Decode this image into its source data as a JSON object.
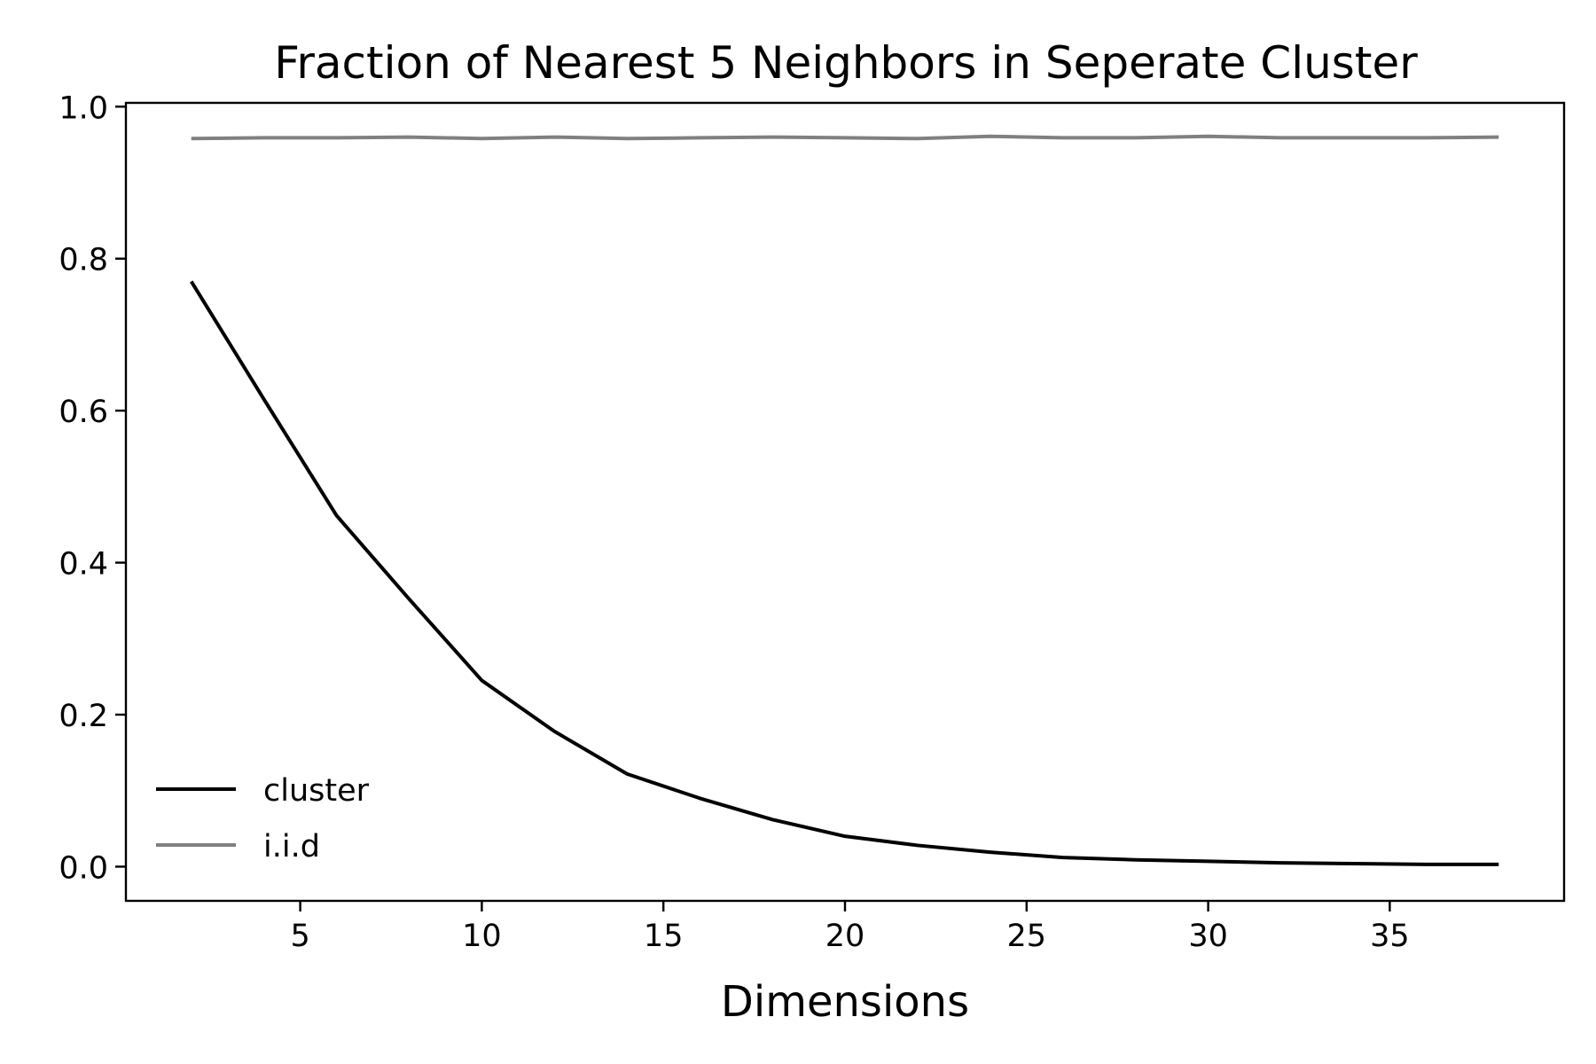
{
  "chart_data": {
    "type": "line",
    "title": "Fraction of Nearest 5 Neighbors in Seperate Cluster",
    "xlabel": "Dimensions",
    "ylabel": "",
    "xlim": [
      0.2,
      39.8
    ],
    "ylim": [
      -0.045,
      1.005
    ],
    "xticks": [
      5,
      10,
      15,
      20,
      25,
      30,
      35
    ],
    "xtick_labels": [
      "5",
      "10",
      "15",
      "20",
      "25",
      "30",
      "35"
    ],
    "yticks": [
      0.0,
      0.2,
      0.4,
      0.6,
      0.8,
      1.0
    ],
    "ytick_labels": [
      "0.0",
      "0.2",
      "0.4",
      "0.6",
      "0.8",
      "1.0"
    ],
    "grid": false,
    "legend": "lower-left",
    "x": [
      2,
      4,
      6,
      8,
      10,
      12,
      14,
      16,
      18,
      20,
      22,
      24,
      26,
      28,
      30,
      32,
      34,
      36,
      38
    ],
    "series": [
      {
        "name": "cluster",
        "color": "#000000",
        "values": [
          0.77,
          0.615,
          0.462,
          0.352,
          0.245,
          0.178,
          0.122,
          0.09,
          0.062,
          0.04,
          0.028,
          0.019,
          0.012,
          0.009,
          0.007,
          0.005,
          0.004,
          0.003,
          0.003
        ]
      },
      {
        "name": "i.i.d",
        "color": "#808080",
        "values": [
          0.958,
          0.959,
          0.959,
          0.96,
          0.958,
          0.96,
          0.958,
          0.959,
          0.96,
          0.959,
          0.958,
          0.961,
          0.959,
          0.959,
          0.961,
          0.959,
          0.959,
          0.959,
          0.96
        ]
      }
    ]
  }
}
